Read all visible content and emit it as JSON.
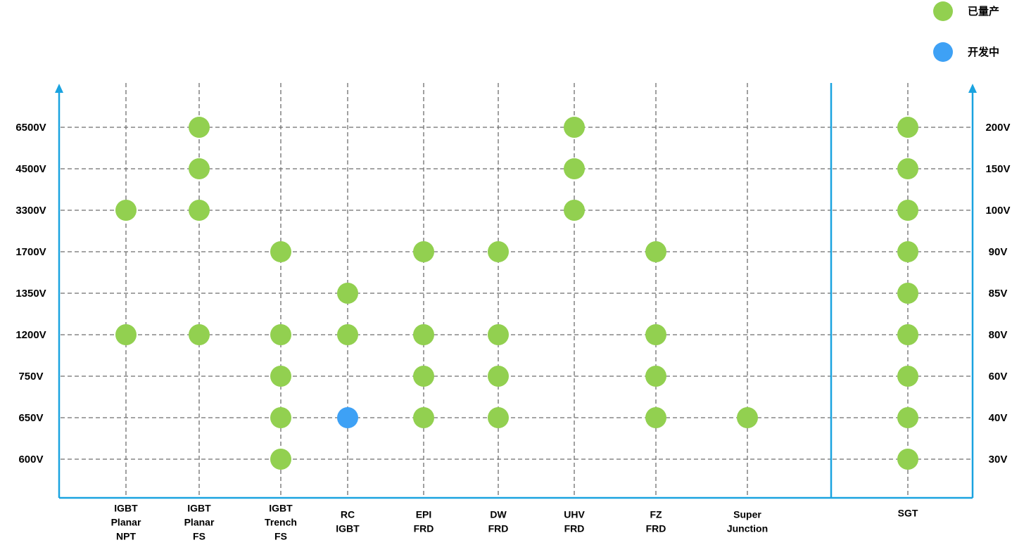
{
  "legend": [
    {
      "label": "已量产",
      "color": "#92d050"
    },
    {
      "label": "开发中",
      "color": "#3ea1f5"
    }
  ],
  "left_rows": [
    "6500V",
    "4500V",
    "3300V",
    "1700V",
    "1350V",
    "1200V",
    "750V",
    "650V",
    "600V"
  ],
  "right_rows": [
    "200V",
    "150V",
    "100V",
    "90V",
    "85V",
    "80V",
    "60V",
    "40V",
    "30V"
  ],
  "columns": [
    {
      "label": [
        "IGBT",
        "Planar",
        "NPT"
      ],
      "cells": [
        null,
        null,
        "已量产",
        null,
        null,
        "已量产",
        null,
        null,
        null
      ]
    },
    {
      "label": [
        "IGBT",
        "Planar",
        "FS"
      ],
      "cells": [
        "已量产",
        "已量产",
        "已量产",
        null,
        null,
        "已量产",
        null,
        null,
        null
      ]
    },
    {
      "label": [
        "IGBT",
        "Trench",
        "FS"
      ],
      "cells": [
        null,
        null,
        null,
        "已量产",
        null,
        "已量产",
        "已量产",
        "已量产",
        "已量产"
      ]
    },
    {
      "label": [
        "RC",
        "IGBT"
      ],
      "cells": [
        null,
        null,
        null,
        null,
        "已量产",
        "已量产",
        null,
        "开发中",
        null
      ]
    },
    {
      "label": [
        "EPI",
        "FRD"
      ],
      "cells": [
        null,
        null,
        null,
        "已量产",
        null,
        "已量产",
        "已量产",
        "已量产",
        null
      ]
    },
    {
      "label": [
        "DW",
        "FRD"
      ],
      "cells": [
        null,
        null,
        null,
        "已量产",
        null,
        "已量产",
        "已量产",
        "已量产",
        null
      ]
    },
    {
      "label": [
        "UHV",
        "FRD"
      ],
      "cells": [
        "已量产",
        "已量产",
        "已量产",
        null,
        null,
        null,
        null,
        null,
        null
      ]
    },
    {
      "label": [
        "FZ",
        "FRD"
      ],
      "cells": [
        null,
        null,
        null,
        "已量产",
        null,
        "已量产",
        "已量产",
        "已量产",
        null
      ]
    },
    {
      "label": [
        "Super",
        "Junction"
      ],
      "cells": [
        null,
        null,
        null,
        null,
        null,
        null,
        null,
        "已量产",
        null
      ]
    },
    {
      "label": [
        "SGT"
      ],
      "cells": [
        "已量产",
        "已量产",
        "已量产",
        "已量产",
        "已量产",
        "已量产",
        "已量产",
        "已量产",
        "已量产"
      ]
    }
  ]
}
